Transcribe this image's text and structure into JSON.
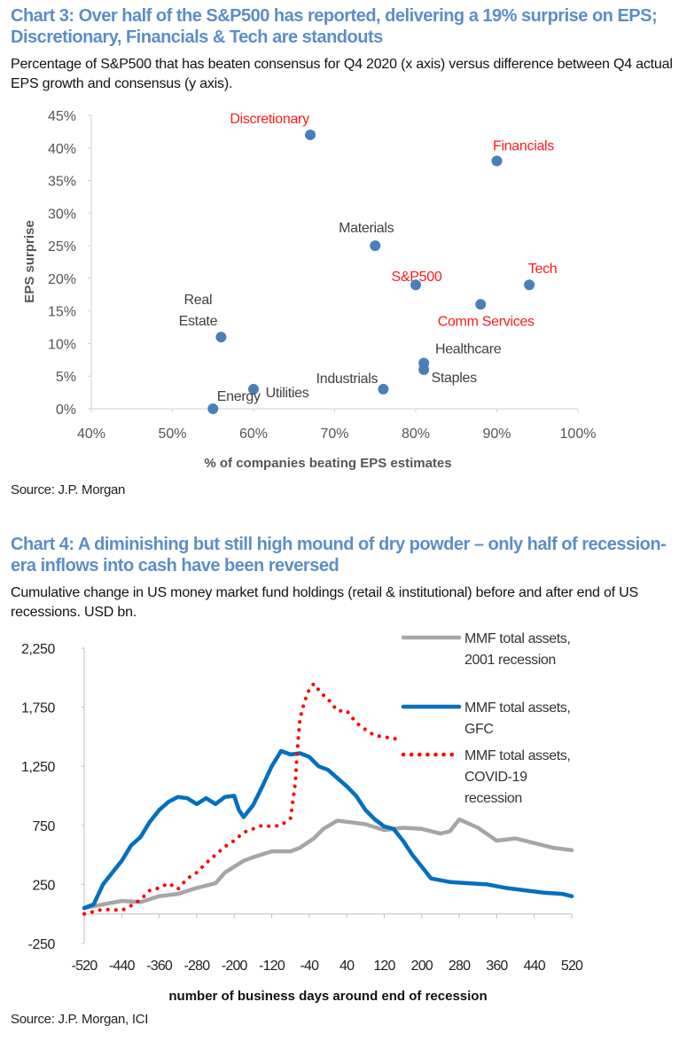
{
  "chart3": {
    "title": "Chart 3: Over half of the S&P500 has reported, delivering a 19% surprise on EPS; Discretionary, Financials & Tech are standouts",
    "subtitle": "Percentage of S&P500 that has beaten consensus for Q4 2020 (x axis) versus difference between Q4 actual EPS growth and consensus (y axis).",
    "source": "Source: J.P. Morgan"
  },
  "chart4": {
    "title": "Chart 4: A diminishing but still high mound of dry powder – only half of recession-era inflows into cash have been reversed",
    "subtitle": "Cumulative change in US money market fund holdings (retail & institutional) before and after end of US recessions. USD bn.",
    "source": "Source: J.P. Morgan, ICI"
  },
  "chart_data": [
    {
      "type": "scatter",
      "xlabel": "% of companies beating EPS estimates",
      "ylabel": "EPS surprise",
      "xlim": [
        40,
        100
      ],
      "ylim": [
        0,
        45
      ],
      "x_ticks": [
        "40%",
        "50%",
        "60%",
        "70%",
        "80%",
        "90%",
        "100%"
      ],
      "y_ticks": [
        "0%",
        "5%",
        "10%",
        "15%",
        "20%",
        "25%",
        "30%",
        "35%",
        "40%",
        "45%"
      ],
      "marker_color": "#4a7ebb",
      "highlight_color": "#ff1a1a",
      "label_color": "#404040",
      "points": [
        {
          "label": "Discretionary",
          "x": 67,
          "y": 42,
          "highlight": true
        },
        {
          "label": "Financials",
          "x": 90,
          "y": 38,
          "highlight": true
        },
        {
          "label": "Materials",
          "x": 75,
          "y": 25,
          "highlight": false
        },
        {
          "label": "S&P500",
          "x": 80,
          "y": 19,
          "highlight": true
        },
        {
          "label": "Tech",
          "x": 94,
          "y": 19,
          "highlight": true
        },
        {
          "label": "Comm Services",
          "x": 88,
          "y": 16,
          "highlight": true
        },
        {
          "label": "Real Estate",
          "x": 56,
          "y": 11,
          "highlight": false
        },
        {
          "label": "Healthcare",
          "x": 81,
          "y": 7,
          "highlight": false
        },
        {
          "label": "Staples",
          "x": 81,
          "y": 6,
          "highlight": false
        },
        {
          "label": "Industrials",
          "x": 76,
          "y": 3,
          "highlight": false
        },
        {
          "label": "Utilities",
          "x": 60,
          "y": 3,
          "highlight": false
        },
        {
          "label": "Energy",
          "x": 55,
          "y": 0,
          "highlight": false
        }
      ]
    },
    {
      "type": "line",
      "xlabel": "number of business days around end of recession",
      "ylabel": "",
      "xlim": [
        -520,
        520
      ],
      "ylim": [
        -250,
        2250
      ],
      "x_ticks": [
        "-520",
        "-440",
        "-360",
        "-280",
        "-200",
        "-120",
        "-40",
        "40",
        "120",
        "200",
        "280",
        "360",
        "440",
        "520"
      ],
      "y_ticks": [
        "-250",
        "250",
        "750",
        "1,250",
        "1,750",
        "2,250"
      ],
      "legend": "top-right",
      "series": [
        {
          "name": "MMF total assets, 2001 recession",
          "name_lines": [
            "MMF total assets,",
            "2001 recession"
          ],
          "color": "#a6a6a6",
          "style": "solid",
          "x": [
            -520,
            -480,
            -440,
            -400,
            -360,
            -320,
            -280,
            -240,
            -220,
            -180,
            -160,
            -120,
            -80,
            -60,
            -30,
            -10,
            20,
            40,
            80,
            120,
            160,
            200,
            240,
            260,
            280,
            320,
            360,
            400,
            440,
            480,
            520
          ],
          "y": [
            50,
            80,
            110,
            100,
            150,
            170,
            220,
            260,
            350,
            450,
            480,
            530,
            530,
            560,
            640,
            720,
            790,
            780,
            760,
            710,
            730,
            720,
            680,
            700,
            800,
            730,
            620,
            640,
            600,
            560,
            540
          ]
        },
        {
          "name": "MMF total assets, GFC",
          "name_lines": [
            "MMF total assets,",
            "GFC"
          ],
          "color": "#0070c0",
          "style": "solid",
          "x": [
            -520,
            -500,
            -480,
            -460,
            -440,
            -420,
            -400,
            -380,
            -360,
            -340,
            -320,
            -300,
            -280,
            -260,
            -240,
            -220,
            -200,
            -190,
            -180,
            -160,
            -140,
            -120,
            -100,
            -80,
            -60,
            -40,
            -20,
            0,
            20,
            40,
            60,
            80,
            100,
            120,
            140,
            160,
            180,
            200,
            220,
            260,
            300,
            340,
            380,
            420,
            460,
            500,
            520
          ],
          "y": [
            50,
            80,
            250,
            350,
            450,
            580,
            650,
            780,
            880,
            950,
            990,
            980,
            930,
            980,
            930,
            990,
            1000,
            880,
            820,
            920,
            1080,
            1250,
            1380,
            1350,
            1360,
            1330,
            1250,
            1220,
            1150,
            1080,
            1000,
            880,
            800,
            740,
            720,
            620,
            500,
            400,
            300,
            270,
            260,
            250,
            220,
            200,
            180,
            170,
            150
          ]
        },
        {
          "name": "MMF total assets, COVID-19 recession",
          "name_lines": [
            "MMF total assets,",
            "COVID-19",
            "recession"
          ],
          "color": "#ff0000",
          "style": "dotted",
          "x": [
            -520,
            -480,
            -440,
            -420,
            -400,
            -380,
            -360,
            -340,
            -320,
            -300,
            -280,
            -260,
            -240,
            -220,
            -200,
            -180,
            -160,
            -140,
            -120,
            -100,
            -80,
            -70,
            -65,
            -60,
            -50,
            -40,
            -30,
            -15,
            0,
            20,
            40,
            60,
            80,
            100,
            120,
            140,
            155
          ],
          "y": [
            0,
            40,
            30,
            70,
            120,
            200,
            220,
            260,
            210,
            300,
            350,
            430,
            500,
            570,
            620,
            690,
            720,
            750,
            740,
            750,
            810,
            1100,
            1400,
            1650,
            1800,
            1900,
            1950,
            1870,
            1820,
            1720,
            1720,
            1620,
            1560,
            1510,
            1500,
            1480,
            1500
          ]
        }
      ]
    }
  ]
}
